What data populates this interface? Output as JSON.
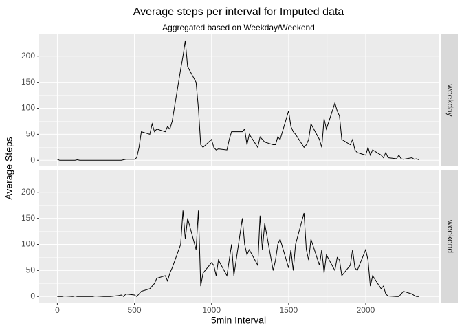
{
  "chart_data": {
    "type": "line",
    "title": "Average steps per interval for Imputed data",
    "subtitle": "Aggregated based on Weekday/Weekend",
    "x_label": "5min Interval",
    "y_label": "Average Steps",
    "x": [
      0,
      15,
      30,
      45,
      100,
      115,
      130,
      145,
      200,
      215,
      230,
      245,
      300,
      315,
      330,
      345,
      400,
      415,
      430,
      445,
      500,
      515,
      530,
      545,
      600,
      615,
      630,
      645,
      700,
      715,
      730,
      745,
      800,
      815,
      830,
      845,
      900,
      915,
      930,
      945,
      1000,
      1015,
      1030,
      1045,
      1100,
      1115,
      1130,
      1145,
      1200,
      1215,
      1230,
      1245,
      1300,
      1315,
      1330,
      1345,
      1400,
      1415,
      1430,
      1445,
      1500,
      1515,
      1530,
      1545,
      1600,
      1615,
      1630,
      1645,
      1700,
      1715,
      1730,
      1745,
      1800,
      1815,
      1830,
      1845,
      1900,
      1915,
      1930,
      1945,
      2000,
      2015,
      2030,
      2045,
      2100,
      2115,
      2130,
      2145,
      2200,
      2215,
      2230,
      2245,
      2300,
      2315,
      2330,
      2345
    ],
    "series": [
      {
        "name": "weekday",
        "color": "#000000",
        "values": [
          2,
          0,
          0,
          0,
          0,
          0,
          1,
          0,
          0,
          0,
          0,
          0,
          0,
          0,
          0,
          0,
          0,
          0,
          1,
          2,
          2,
          5,
          25,
          55,
          50,
          70,
          55,
          60,
          55,
          65,
          60,
          75,
          175,
          200,
          230,
          180,
          150,
          100,
          30,
          25,
          40,
          25,
          20,
          22,
          20,
          40,
          55,
          55,
          55,
          60,
          30,
          50,
          25,
          45,
          40,
          35,
          30,
          30,
          45,
          40,
          95,
          65,
          55,
          50,
          25,
          30,
          40,
          70,
          40,
          25,
          80,
          60,
          110,
          95,
          85,
          40,
          30,
          40,
          20,
          15,
          10,
          25,
          10,
          20,
          10,
          5,
          15,
          5,
          3,
          10,
          3,
          2,
          5,
          2,
          3,
          1
        ]
      },
      {
        "name": "weekend",
        "color": "#000000",
        "values": [
          0,
          0,
          0,
          1,
          0,
          1,
          0,
          0,
          0,
          0,
          0,
          1,
          0,
          0,
          0,
          0,
          2,
          3,
          0,
          5,
          3,
          0,
          5,
          10,
          15,
          20,
          25,
          35,
          40,
          30,
          45,
          55,
          100,
          165,
          110,
          150,
          90,
          165,
          20,
          45,
          65,
          60,
          40,
          70,
          40,
          70,
          100,
          40,
          150,
          100,
          80,
          90,
          60,
          155,
          90,
          140,
          50,
          70,
          100,
          110,
          55,
          90,
          50,
          100,
          160,
          90,
          70,
          110,
          60,
          90,
          45,
          80,
          50,
          75,
          70,
          40,
          60,
          90,
          55,
          50,
          90,
          70,
          20,
          40,
          15,
          20,
          5,
          1,
          0,
          0,
          5,
          10,
          5,
          2,
          0,
          0
        ]
      }
    ],
    "xlim": [
      -117.75,
      2472.75
    ],
    "xticks": [
      0,
      500,
      1000,
      1500,
      2000
    ],
    "ylim": [
      -11.52,
      241.88
    ],
    "yticks": [
      0,
      50,
      100,
      150,
      200
    ],
    "grid": true
  }
}
